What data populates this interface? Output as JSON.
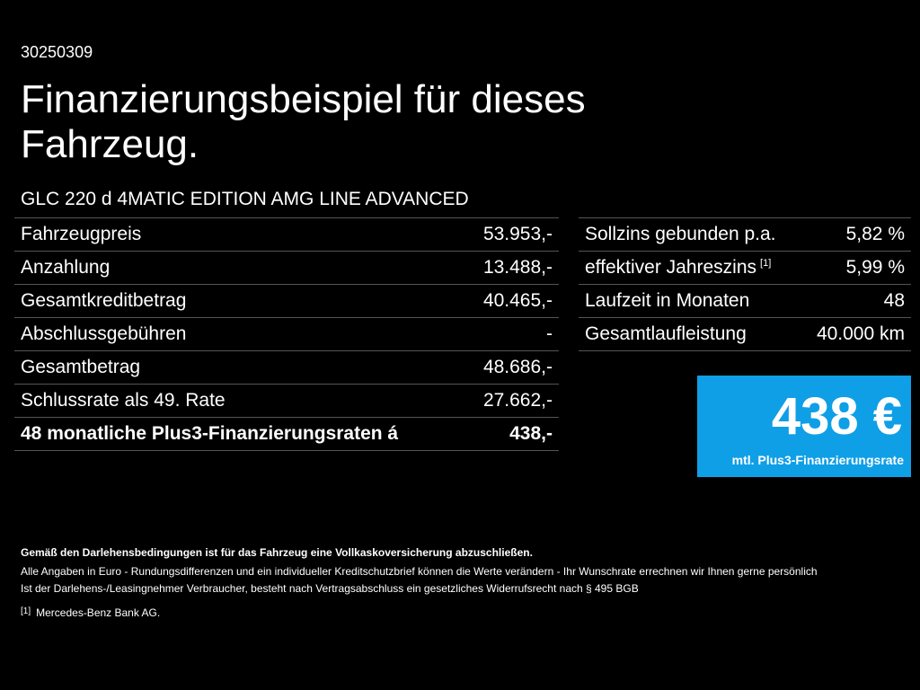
{
  "header": {
    "code": "30250309",
    "title": "Finanzierungsbeispiel für dieses Fahrzeug.",
    "model": "GLC 220 d 4MATIC EDITION AMG LINE ADVANCED"
  },
  "left_table": {
    "rows": [
      [
        "Fahrzeugpreis",
        "53.953,-"
      ],
      [
        "Anzahlung",
        "13.488,-"
      ],
      [
        "Gesamtkreditbetrag",
        "40.465,-"
      ],
      [
        "Abschlussgebühren",
        "-"
      ],
      [
        "Gesamtbetrag",
        "48.686,-"
      ],
      [
        "Schlussrate als 49. Rate",
        "27.662,-"
      ],
      [
        "48 monatliche Plus3-Finanzierungsraten á",
        "438,-"
      ]
    ]
  },
  "right_table": {
    "rows": [
      [
        "Sollzins gebunden p.a.",
        "5,82 %"
      ],
      [
        "effektiver Jahreszins",
        "5,99 %"
      ],
      [
        "Laufzeit in Monaten",
        "48"
      ],
      [
        "Gesamtlaufleistung",
        "40.000 km"
      ]
    ],
    "footnote_ref": "[1]"
  },
  "rate_box": {
    "amount": "438 €",
    "label": "mtl. Plus3-Finanzierungsrate"
  },
  "footer": {
    "insurance": "Gemäß den Darlehensbedingungen ist für das Fahrzeug eine Vollkaskoversicherung abzuschließen.",
    "lines": [
      "Alle Angaben in Euro - Rundungsdifferenzen und ein individueller Kreditschutzbrief können die Werte verändern - Ihr Wunschrate errechnen wir Ihnen gerne persönlich",
      "Ist der Darlehens-/Leasingnehmer Verbraucher, besteht nach Vertragsabschluss ein gesetzliches Widerrufsrecht nach § 495 BGB"
    ],
    "footnote_mark": "[1]",
    "footnote_text": "Mercedes-Benz Bank AG."
  }
}
